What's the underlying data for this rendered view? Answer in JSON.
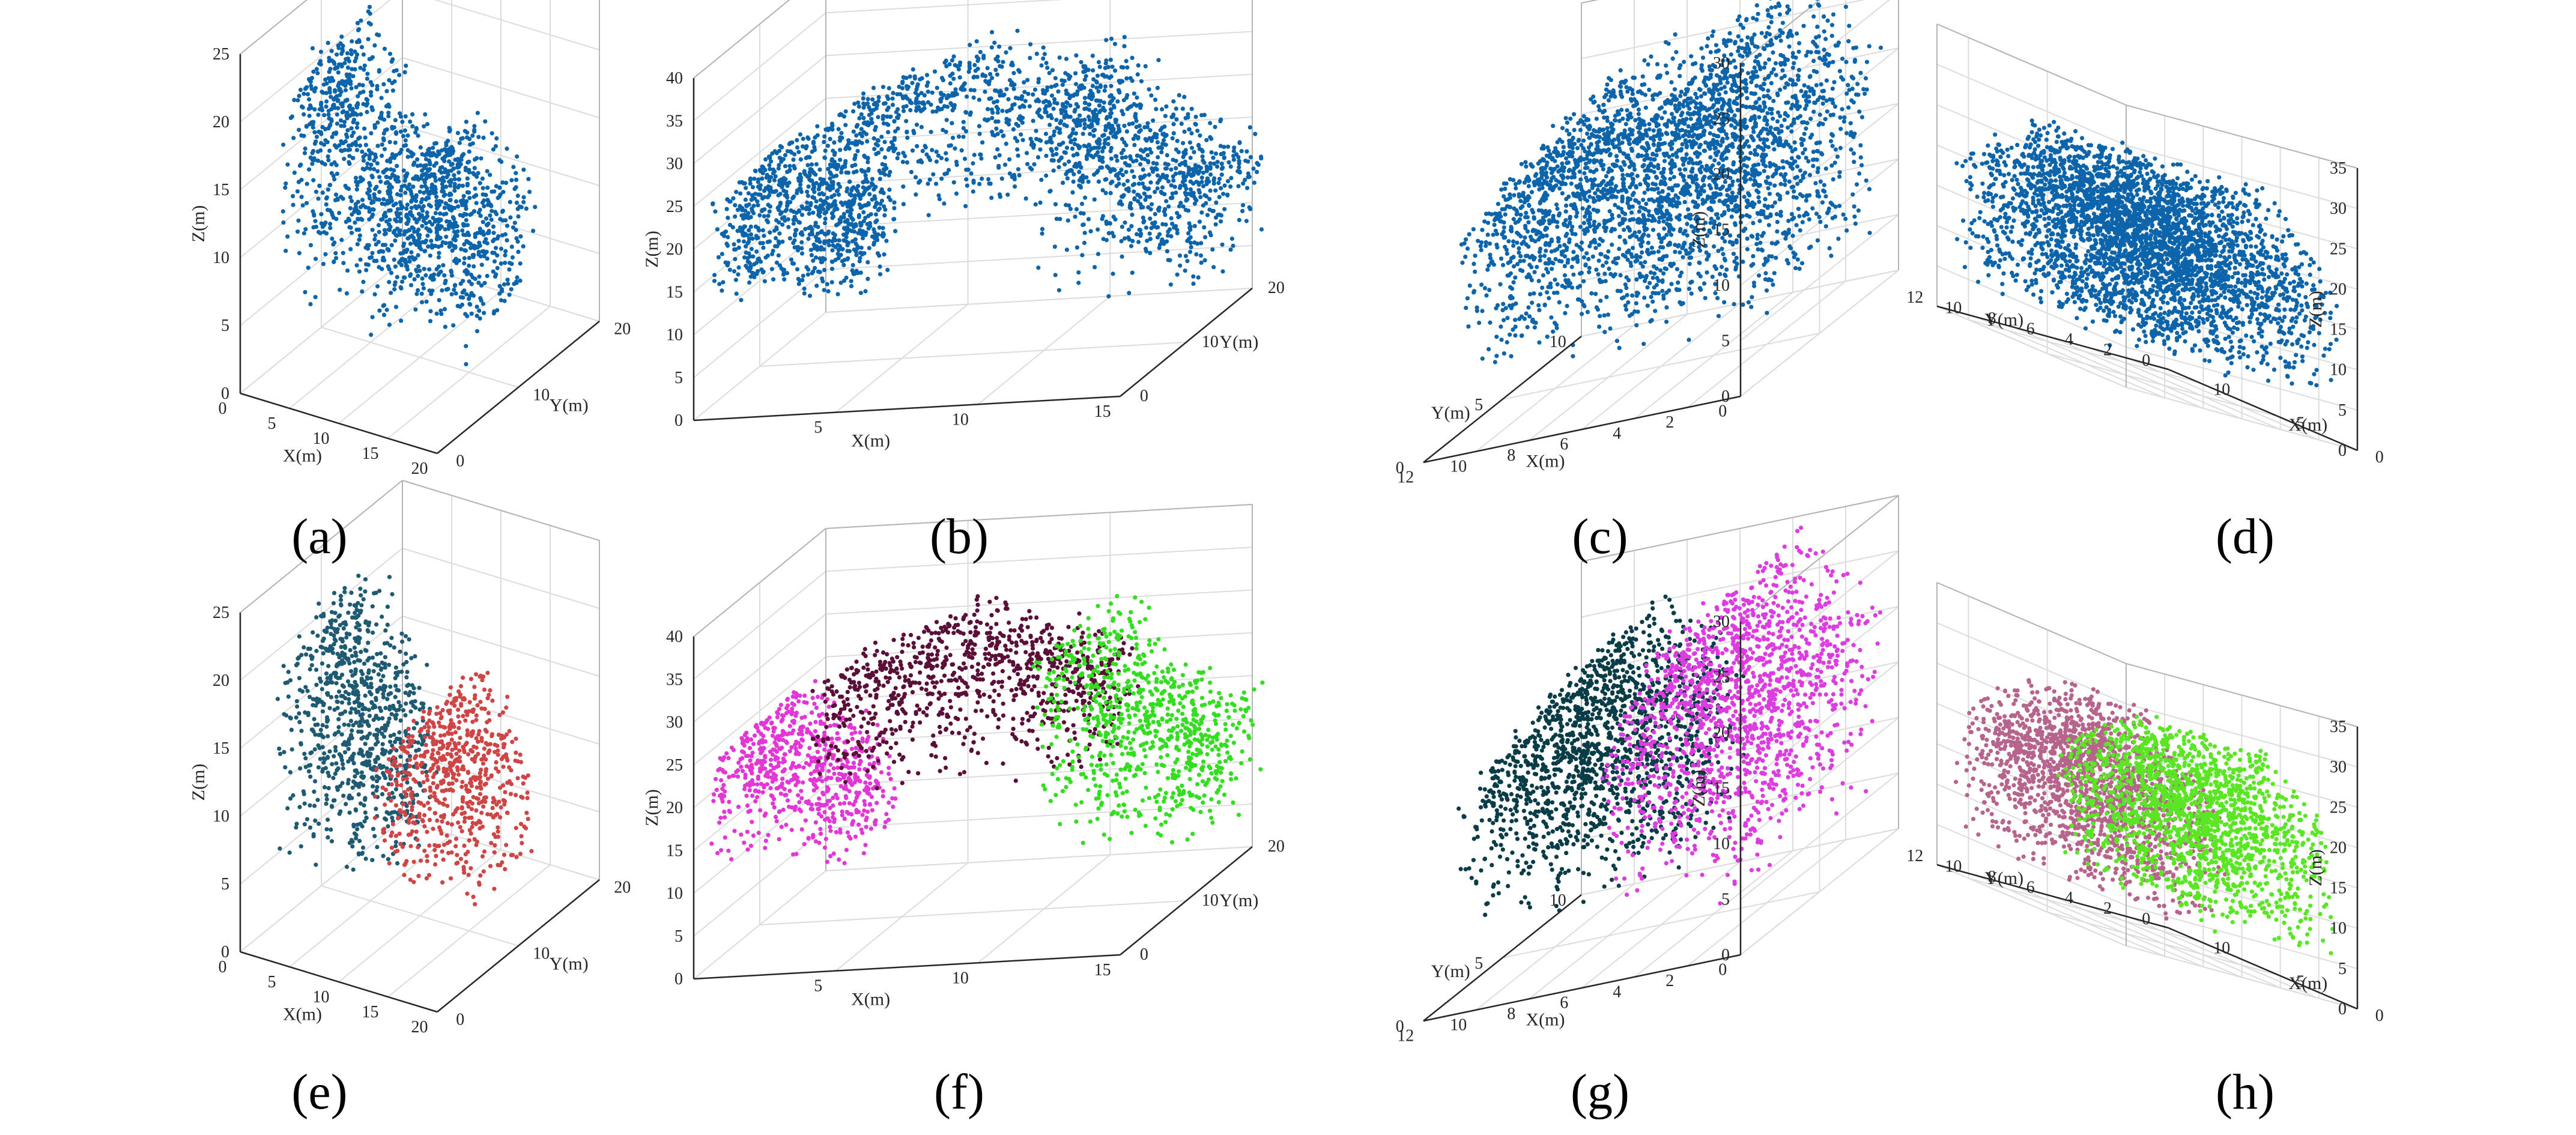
{
  "chart_data": [
    {
      "label": "(a)",
      "type": "scatter3d",
      "xlabel": "X(m)",
      "ylabel": "Y(m)",
      "zlabel": "Z(m)",
      "xlim": [
        0,
        20
      ],
      "ylim": [
        0,
        20
      ],
      "zlim": [
        0,
        25
      ],
      "xticks": [
        0,
        5,
        10,
        15,
        20
      ],
      "yticks": [
        0,
        10,
        20
      ],
      "zticks": [
        0,
        5,
        10,
        15,
        20,
        25
      ],
      "x_direction": "normal",
      "y_direction": "normal",
      "grid": true,
      "series": [
        {
          "color": "#0c64aa",
          "count": 1500,
          "clusters": [
            {
              "x": [
                2,
                12
              ],
              "y": [
                2,
                10
              ],
              "z": [
                5,
                26
              ],
              "top": [
                6,
                25
              ]
            },
            {
              "x": [
                11,
                21
              ],
              "y": [
                3,
                11
              ],
              "z": [
                5,
                20
              ],
              "top": [
                16,
                11
              ]
            }
          ]
        }
      ]
    },
    {
      "label": "(b)",
      "type": "scatter3d",
      "xlabel": "X(m)",
      "ylabel": "Y(m)",
      "zlabel": "Z(m)",
      "xlim": [
        0,
        15
      ],
      "ylim": [
        0,
        20
      ],
      "zlim": [
        0,
        40
      ],
      "xticks": [
        5,
        10,
        15
      ],
      "yticks": [
        0,
        10,
        20
      ],
      "zticks": [
        0,
        5,
        10,
        15,
        20,
        25,
        30,
        35,
        40
      ],
      "x_direction": "normal",
      "y_direction": "normal",
      "grid": true,
      "series": [
        {
          "color": "#0c64aa",
          "count": 2400,
          "clusters": [
            {
              "x": [
                0,
                5
              ],
              "y": [
                2,
                10
              ],
              "z": [
                10,
                29
              ],
              "top": [
                2,
                28
              ]
            },
            {
              "x": [
                3,
                13
              ],
              "y": [
                4,
                12
              ],
              "z": [
                18,
                37
              ],
              "top": [
                8,
                36
              ]
            },
            {
              "x": [
                10,
                16
              ],
              "y": [
                8,
                18
              ],
              "z": [
                6,
                33
              ],
              "top": [
                11,
                32
              ]
            }
          ]
        }
      ]
    },
    {
      "label": "(c)",
      "type": "scatter3d",
      "xlabel": "X(m)",
      "ylabel": "Y(m)",
      "zlabel": "Z(m)",
      "xlim": [
        0,
        12
      ],
      "ylim": [
        0,
        10
      ],
      "zlim": [
        0,
        30
      ],
      "xticks": [
        0,
        2,
        4,
        6,
        8,
        10,
        12
      ],
      "yticks": [
        0,
        5,
        10
      ],
      "zticks": [
        0,
        5,
        10,
        15,
        20,
        25,
        30
      ],
      "x_direction": "reversed",
      "y_direction": "reversed",
      "grid": true,
      "series": [
        {
          "color": "#0c64aa",
          "count": 3000,
          "clusters": [
            {
              "x": [
                5,
                12
              ],
              "y": [
                2,
                9
              ],
              "z": [
                4,
                27
              ],
              "top": [
                8,
                26
              ]
            },
            {
              "x": [
                0,
                6
              ],
              "y": [
                1,
                9
              ],
              "z": [
                4,
                31
              ],
              "top": [
                3,
                30
              ]
            }
          ]
        }
      ]
    },
    {
      "label": "(d)",
      "type": "scatter3d",
      "xlabel": "X(m)",
      "ylabel": "Y(m)",
      "zlabel": "Z(m)",
      "xlim": [
        0,
        12
      ],
      "ylim": [
        0,
        12
      ],
      "zlim": [
        0,
        35
      ],
      "xticks": [
        0,
        5,
        10
      ],
      "yticks": [
        0,
        2,
        4,
        6,
        8,
        10,
        12
      ],
      "zticks": [
        0,
        5,
        10,
        15,
        20,
        25,
        30,
        35
      ],
      "x_direction": "reversed",
      "y_direction": "reversed",
      "grid": true,
      "series": [
        {
          "color": "#0c64aa",
          "count": 3400,
          "clusters": [
            {
              "x": [
                1,
                11
              ],
              "y": [
                6,
                12
              ],
              "z": [
                4,
                29
              ],
              "top": [
                6,
                29
              ]
            },
            {
              "x": [
                1,
                11
              ],
              "y": [
                0,
                7
              ],
              "z": [
                4,
                28
              ],
              "top": [
                6,
                28
              ]
            }
          ]
        }
      ]
    },
    {
      "label": "(e)",
      "type": "scatter3d",
      "xlabel": "X(m)",
      "ylabel": "Y(m)",
      "zlabel": "Z(m)",
      "xlim": [
        0,
        20
      ],
      "ylim": [
        0,
        20
      ],
      "zlim": [
        0,
        25
      ],
      "xticks": [
        0,
        5,
        10,
        15,
        20
      ],
      "yticks": [
        0,
        10,
        20
      ],
      "zticks": [
        0,
        5,
        10,
        15,
        20,
        25
      ],
      "x_direction": "normal",
      "y_direction": "normal",
      "grid": true,
      "series": [
        {
          "color": "#1f5a73",
          "count": 850,
          "clusters": [
            {
              "x": [
                2,
                12
              ],
              "y": [
                2,
                10
              ],
              "z": [
                5,
                26
              ],
              "top": [
                6,
                25
              ]
            }
          ]
        },
        {
          "color": "#cf4444",
          "count": 650,
          "clusters": [
            {
              "x": [
                11,
                21
              ],
              "y": [
                3,
                11
              ],
              "z": [
                5,
                20
              ],
              "top": [
                16,
                11
              ]
            }
          ]
        }
      ]
    },
    {
      "label": "(f)",
      "type": "scatter3d",
      "xlabel": "X(m)",
      "ylabel": "Y(m)",
      "zlabel": "Z(m)",
      "xlim": [
        0,
        15
      ],
      "ylim": [
        0,
        20
      ],
      "zlim": [
        0,
        40
      ],
      "xticks": [
        5,
        10,
        15
      ],
      "yticks": [
        0,
        10,
        20
      ],
      "zticks": [
        0,
        5,
        10,
        15,
        20,
        25,
        30,
        35,
        40
      ],
      "x_direction": "normal",
      "y_direction": "normal",
      "grid": true,
      "series": [
        {
          "color": "#e236d6",
          "count": 700,
          "clusters": [
            {
              "x": [
                0,
                5
              ],
              "y": [
                2,
                10
              ],
              "z": [
                10,
                29
              ],
              "top": [
                2,
                28
              ]
            }
          ]
        },
        {
          "color": "#5a0f38",
          "count": 900,
          "clusters": [
            {
              "x": [
                3,
                13
              ],
              "y": [
                4,
                12
              ],
              "z": [
                18,
                37
              ],
              "top": [
                8,
                36
              ]
            }
          ]
        },
        {
          "color": "#33dd1f",
          "count": 800,
          "clusters": [
            {
              "x": [
                10,
                16
              ],
              "y": [
                8,
                18
              ],
              "z": [
                6,
                33
              ],
              "top": [
                11,
                32
              ]
            }
          ]
        }
      ]
    },
    {
      "label": "(g)",
      "type": "scatter3d",
      "xlabel": "X(m)",
      "ylabel": "Y(m)",
      "zlabel": "Z(m)",
      "xlim": [
        0,
        12
      ],
      "ylim": [
        0,
        10
      ],
      "zlim": [
        0,
        30
      ],
      "xticks": [
        0,
        2,
        4,
        6,
        8,
        10,
        12
      ],
      "yticks": [
        0,
        5,
        10
      ],
      "zticks": [
        0,
        5,
        10,
        15,
        20,
        25,
        30
      ],
      "x_direction": "reversed",
      "y_direction": "reversed",
      "grid": true,
      "series": [
        {
          "color": "#083c46",
          "count": 1500,
          "clusters": [
            {
              "x": [
                5,
                12
              ],
              "y": [
                2,
                9
              ],
              "z": [
                4,
                27
              ],
              "top": [
                8,
                26
              ]
            }
          ]
        },
        {
          "color": "#dc3ce0",
          "count": 1500,
          "clusters": [
            {
              "x": [
                0,
                6
              ],
              "y": [
                1,
                9
              ],
              "z": [
                4,
                31
              ],
              "top": [
                3,
                30
              ]
            }
          ]
        }
      ]
    },
    {
      "label": "(h)",
      "type": "scatter3d",
      "xlabel": "X(m)",
      "ylabel": "Y(m)",
      "zlabel": "Z(m)",
      "xlim": [
        0,
        12
      ],
      "ylim": [
        0,
        12
      ],
      "zlim": [
        0,
        35
      ],
      "xticks": [
        0,
        5,
        10
      ],
      "yticks": [
        0,
        2,
        4,
        6,
        8,
        10,
        12
      ],
      "zticks": [
        0,
        5,
        10,
        15,
        20,
        25,
        30,
        35
      ],
      "x_direction": "reversed",
      "y_direction": "reversed",
      "grid": true,
      "series": [
        {
          "color": "#b7648d",
          "count": 1700,
          "clusters": [
            {
              "x": [
                1,
                11
              ],
              "y": [
                6,
                12
              ],
              "z": [
                4,
                29
              ],
              "top": [
                6,
                29
              ]
            }
          ]
        },
        {
          "color": "#5ae622",
          "count": 1700,
          "clusters": [
            {
              "x": [
                1,
                11
              ],
              "y": [
                0,
                7
              ],
              "z": [
                4,
                28
              ],
              "top": [
                6,
                28
              ]
            }
          ]
        }
      ]
    }
  ]
}
